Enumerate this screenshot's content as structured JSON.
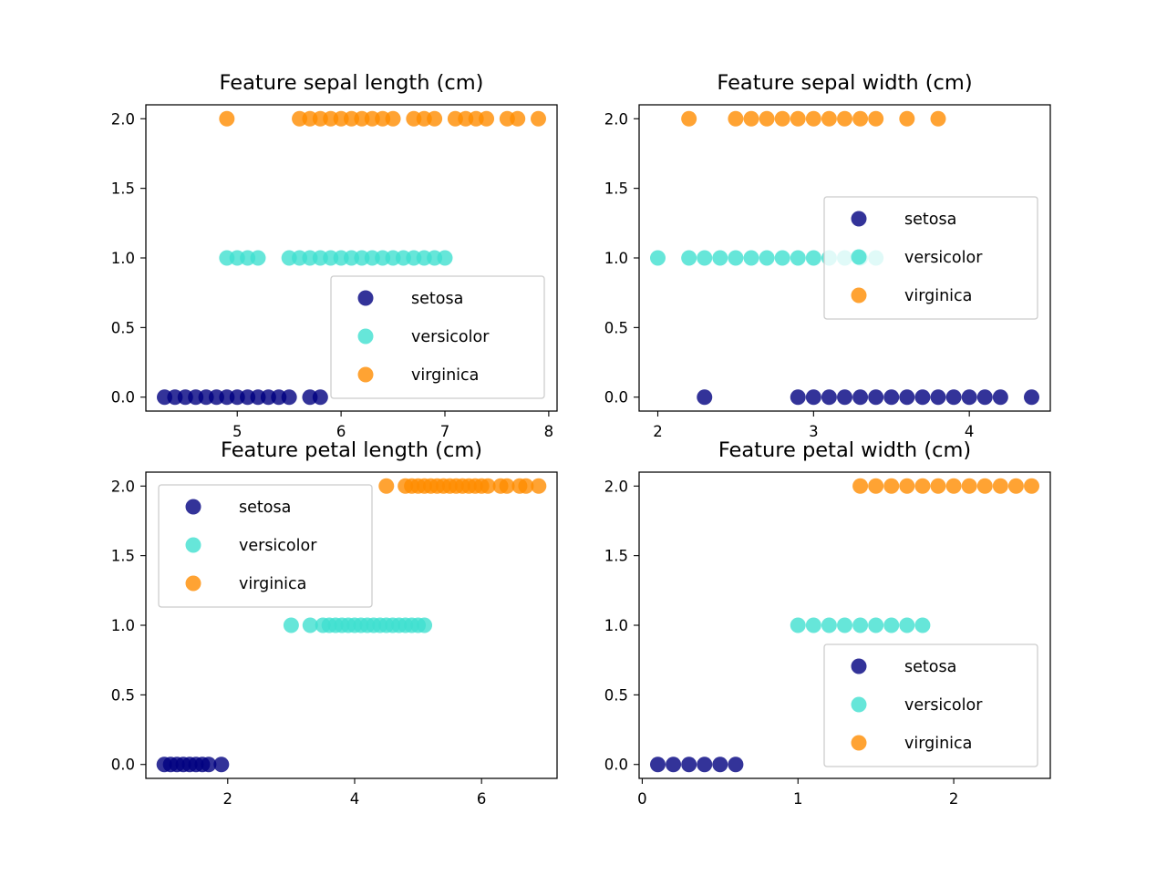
{
  "chart_data": [
    {
      "type": "scatter",
      "title": "Feature sepal length (cm)",
      "xlabel": "",
      "ylabel": "",
      "xlim": [
        4.12,
        8.08
      ],
      "ylim": [
        -0.1,
        2.1
      ],
      "xticks": [
        "5",
        "6",
        "7",
        "8"
      ],
      "yticks": [
        "0.0",
        "0.5",
        "1.0",
        "1.5",
        "2.0"
      ],
      "legend": "lower-right",
      "series": [
        {
          "name": "setosa",
          "color": "#000080",
          "y": 0,
          "x": [
            4.3,
            4.4,
            4.5,
            4.6,
            4.7,
            4.8,
            4.9,
            5.0,
            5.1,
            5.2,
            5.3,
            5.4,
            5.5,
            5.7,
            5.8
          ]
        },
        {
          "name": "versicolor",
          "color": "#40E0D0",
          "y": 1,
          "x": [
            4.9,
            5.0,
            5.1,
            5.2,
            5.5,
            5.6,
            5.7,
            5.8,
            5.9,
            6.0,
            6.1,
            6.2,
            6.3,
            6.4,
            6.5,
            6.6,
            6.7,
            6.8,
            6.9,
            7.0
          ]
        },
        {
          "name": "virginica",
          "color": "#FF8C00",
          "y": 2,
          "x": [
            4.9,
            5.6,
            5.7,
            5.8,
            5.9,
            6.0,
            6.1,
            6.2,
            6.3,
            6.4,
            6.5,
            6.7,
            6.8,
            6.9,
            7.1,
            7.2,
            7.3,
            7.4,
            7.6,
            7.7,
            7.9
          ]
        }
      ]
    },
    {
      "type": "scatter",
      "title": "Feature sepal width (cm)",
      "xlabel": "",
      "ylabel": "",
      "xlim": [
        1.88,
        4.52
      ],
      "ylim": [
        -0.1,
        2.1
      ],
      "xticks": [
        "2",
        "3",
        "4"
      ],
      "yticks": [
        "0.0",
        "0.5",
        "1.0",
        "1.5",
        "2.0"
      ],
      "legend": "center-right",
      "series": [
        {
          "name": "setosa",
          "color": "#000080",
          "y": 0,
          "x": [
            2.3,
            2.9,
            3.0,
            3.1,
            3.2,
            3.3,
            3.4,
            3.5,
            3.6,
            3.7,
            3.8,
            3.9,
            4.0,
            4.1,
            4.2,
            4.4
          ]
        },
        {
          "name": "versicolor",
          "color": "#40E0D0",
          "y": 1,
          "x": [
            2.0,
            2.2,
            2.3,
            2.4,
            2.5,
            2.6,
            2.7,
            2.8,
            2.9,
            3.0,
            3.1,
            3.2,
            3.3,
            3.4
          ]
        },
        {
          "name": "virginica",
          "color": "#FF8C00",
          "y": 2,
          "x": [
            2.2,
            2.5,
            2.6,
            2.7,
            2.8,
            2.9,
            3.0,
            3.1,
            3.2,
            3.3,
            3.4,
            3.6,
            3.8
          ]
        }
      ]
    },
    {
      "type": "scatter",
      "title": "Feature petal length (cm)",
      "xlabel": "",
      "ylabel": "",
      "xlim": [
        0.71,
        7.19
      ],
      "ylim": [
        -0.1,
        2.1
      ],
      "xticks": [
        "2",
        "4",
        "6"
      ],
      "yticks": [
        "0.0",
        "0.5",
        "1.0",
        "1.5",
        "2.0"
      ],
      "legend": "upper-left",
      "series": [
        {
          "name": "setosa",
          "color": "#000080",
          "y": 0,
          "x": [
            1.0,
            1.1,
            1.2,
            1.3,
            1.4,
            1.5,
            1.6,
            1.7,
            1.9
          ]
        },
        {
          "name": "versicolor",
          "color": "#40E0D0",
          "y": 1,
          "x": [
            3.0,
            3.3,
            3.5,
            3.6,
            3.7,
            3.8,
            3.9,
            4.0,
            4.1,
            4.2,
            4.3,
            4.4,
            4.5,
            4.6,
            4.7,
            4.8,
            4.9,
            5.0,
            5.1
          ]
        },
        {
          "name": "virginica",
          "color": "#FF8C00",
          "y": 2,
          "x": [
            4.5,
            4.8,
            4.9,
            5.0,
            5.1,
            5.2,
            5.3,
            5.4,
            5.5,
            5.6,
            5.7,
            5.8,
            5.9,
            6.0,
            6.1,
            6.3,
            6.4,
            6.6,
            6.7,
            6.9
          ]
        }
      ]
    },
    {
      "type": "scatter",
      "title": "Feature petal width (cm)",
      "xlabel": "",
      "ylabel": "",
      "xlim": [
        -0.02,
        2.62
      ],
      "ylim": [
        -0.1,
        2.1
      ],
      "xticks": [
        "0",
        "1",
        "2"
      ],
      "yticks": [
        "0.0",
        "0.5",
        "1.0",
        "1.5",
        "2.0"
      ],
      "legend": "lower-right",
      "series": [
        {
          "name": "setosa",
          "color": "#000080",
          "y": 0,
          "x": [
            0.1,
            0.2,
            0.3,
            0.4,
            0.5,
            0.6
          ]
        },
        {
          "name": "versicolor",
          "color": "#40E0D0",
          "y": 1,
          "x": [
            1.0,
            1.1,
            1.2,
            1.3,
            1.4,
            1.5,
            1.6,
            1.7,
            1.8
          ]
        },
        {
          "name": "virginica",
          "color": "#FF8C00",
          "y": 2,
          "x": [
            1.4,
            1.5,
            1.6,
            1.7,
            1.8,
            1.9,
            2.0,
            2.1,
            2.2,
            2.3,
            2.4,
            2.5
          ]
        }
      ]
    }
  ]
}
